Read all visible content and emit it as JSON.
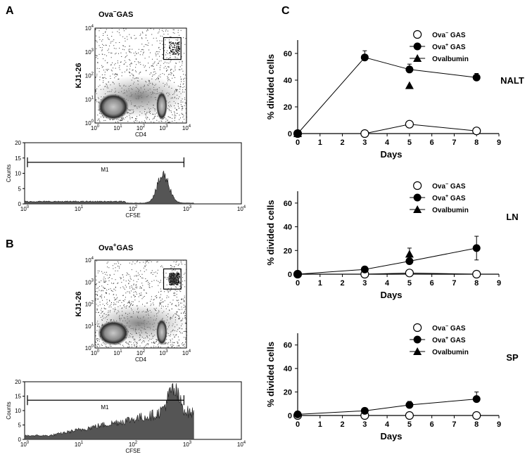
{
  "panels": {
    "A": {
      "letter": "A",
      "title_base": "Ova",
      "title_sup": "−",
      "title_rest": "GAS",
      "dot_ylabel": "KJ1-26",
      "dot_xlabel": "CD4",
      "hist_ylabel": "Counts",
      "hist_xlabel": "CFSE",
      "marker": "M1"
    },
    "B": {
      "letter": "B",
      "title_base": "Ova",
      "title_sup": "+",
      "title_rest": "GAS",
      "dot_ylabel": "KJ1-26",
      "dot_xlabel": "CD4",
      "hist_ylabel": "Counts",
      "hist_xlabel": "CFSE",
      "marker": "M1"
    },
    "C": {
      "letter": "C"
    }
  },
  "flow": {
    "log_ticks": [
      "0",
      "1",
      "2",
      "3",
      "4"
    ],
    "log_base": "10",
    "hist_yticks": [
      "0",
      "5",
      "10",
      "15",
      "20"
    ]
  },
  "chart_data": [
    {
      "type": "line",
      "tissue": "NALT",
      "xlabel": "Days",
      "ylabel": "% divided cells",
      "xlim": [
        0,
        9
      ],
      "ylim": [
        0,
        70
      ],
      "xticks": [
        "0",
        "1",
        "2",
        "3",
        "4",
        "5",
        "6",
        "7",
        "8",
        "9"
      ],
      "yticks": [
        "0",
        "20",
        "40",
        "60"
      ],
      "series": [
        {
          "name": "Ova− GAS",
          "marker": "open-circle",
          "x": [
            0,
            3,
            5,
            8
          ],
          "y": [
            0,
            0,
            7,
            2
          ],
          "err": [
            0,
            0,
            0,
            0
          ]
        },
        {
          "name": "Ova+ GAS",
          "marker": "filled-circle",
          "x": [
            0,
            3,
            5,
            8
          ],
          "y": [
            0,
            57,
            48,
            42
          ],
          "err": [
            0,
            5,
            4,
            3
          ]
        },
        {
          "name": "Ovalbumin",
          "marker": "filled-triangle",
          "x": [
            0,
            5
          ],
          "y": [
            0,
            36
          ],
          "err": [
            0,
            0
          ]
        }
      ]
    },
    {
      "type": "line",
      "tissue": "LN",
      "xlabel": "Days",
      "ylabel": "% divided cells",
      "xlim": [
        0,
        9
      ],
      "ylim": [
        0,
        70
      ],
      "xticks": [
        "0",
        "1",
        "2",
        "3",
        "4",
        "5",
        "6",
        "7",
        "8",
        "9"
      ],
      "yticks": [
        "0",
        "20",
        "40",
        "60"
      ],
      "series": [
        {
          "name": "Ova− GAS",
          "marker": "open-circle",
          "x": [
            0,
            3,
            5,
            8
          ],
          "y": [
            0,
            0,
            1,
            0
          ],
          "err": [
            0,
            0,
            0,
            0
          ]
        },
        {
          "name": "Ova+ GAS",
          "marker": "filled-circle",
          "x": [
            0,
            3,
            5,
            8
          ],
          "y": [
            0,
            4,
            11,
            22
          ],
          "err": [
            0,
            0,
            0,
            10
          ]
        },
        {
          "name": "Ovalbumin",
          "marker": "filled-triangle",
          "x": [
            5
          ],
          "y": [
            17
          ],
          "err": [
            5
          ]
        }
      ]
    },
    {
      "type": "line",
      "tissue": "SP",
      "xlabel": "Days",
      "ylabel": "% divided cells",
      "xlim": [
        0,
        9
      ],
      "ylim": [
        0,
        70
      ],
      "xticks": [
        "0",
        "1",
        "2",
        "3",
        "4",
        "5",
        "6",
        "7",
        "8",
        "9"
      ],
      "yticks": [
        "0",
        "20",
        "40",
        "60"
      ],
      "series": [
        {
          "name": "Ova− GAS",
          "marker": "open-circle",
          "x": [
            0,
            3,
            5,
            8
          ],
          "y": [
            0,
            0,
            0,
            0
          ],
          "err": [
            0,
            0,
            0,
            0
          ]
        },
        {
          "name": "Ova+ GAS",
          "marker": "filled-circle",
          "x": [
            0,
            3,
            5,
            8
          ],
          "y": [
            1,
            4,
            9,
            14
          ],
          "err": [
            0,
            0,
            3,
            6
          ]
        },
        {
          "name": "Ovalbumin",
          "marker": "filled-triangle",
          "x": [],
          "y": [],
          "err": []
        }
      ]
    }
  ],
  "legend": {
    "items": [
      {
        "base": "Ova",
        "sup": "−",
        "rest": " GAS"
      },
      {
        "base": "Ova",
        "sup": "+",
        "rest": " GAS"
      },
      {
        "base": "Ovalbumin",
        "sup": "",
        "rest": ""
      }
    ]
  }
}
